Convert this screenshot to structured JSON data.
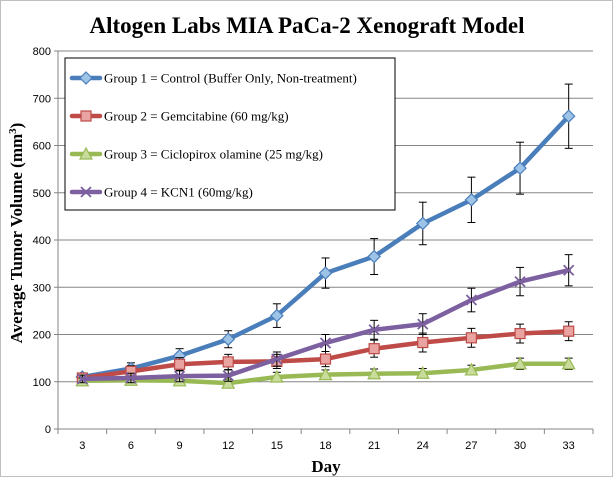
{
  "chart_data": {
    "type": "line",
    "title": "Altogen Labs MIA PaCa-2 Xenograft Model",
    "xlabel": "Day",
    "ylabel_main": "Average Tumor Volume (mm",
    "ylabel_sup": "3",
    "ylabel_close": ")",
    "x": [
      3,
      6,
      9,
      12,
      15,
      18,
      21,
      24,
      27,
      30,
      33
    ],
    "ylim": [
      0,
      800
    ],
    "yticks": [
      0,
      100,
      200,
      300,
      400,
      500,
      600,
      700,
      800
    ],
    "grid": "horizontal",
    "legend_position": "top-left",
    "series": [
      {
        "name": "Group 1 = Control (Buffer Only, Non-treatment)",
        "color": "#4a7ebb",
        "marker": "diamond",
        "values": [
          110,
          128,
          155,
          190,
          240,
          330,
          365,
          435,
          485,
          552,
          662
        ],
        "errors": [
          8,
          12,
          15,
          18,
          25,
          32,
          38,
          45,
          48,
          55,
          68
        ]
      },
      {
        "name": "Group 2 = Gemcitabine (60 mg/kg)",
        "color": "#be4b48",
        "marker": "square",
        "values": [
          108,
          122,
          137,
          142,
          143,
          148,
          170,
          183,
          193,
          202,
          207
        ],
        "errors": [
          8,
          12,
          14,
          16,
          15,
          16,
          18,
          20,
          20,
          20,
          20
        ]
      },
      {
        "name": "Group 3 = Ciclopirox olamine (25 mg/kg)",
        "color": "#98b954",
        "marker": "triangle",
        "values": [
          102,
          103,
          102,
          97,
          110,
          115,
          117,
          118,
          125,
          138,
          138
        ],
        "errors": [
          6,
          8,
          10,
          8,
          10,
          10,
          10,
          10,
          10,
          12,
          12
        ]
      },
      {
        "name": "Group 4 = KCN1 (60mg/kg)",
        "color": "#7d60a0",
        "marker": "x",
        "values": [
          106,
          108,
          112,
          113,
          148,
          182,
          210,
          222,
          273,
          312,
          336
        ],
        "errors": [
          8,
          10,
          12,
          12,
          15,
          18,
          20,
          22,
          25,
          30,
          33
        ]
      }
    ]
  }
}
